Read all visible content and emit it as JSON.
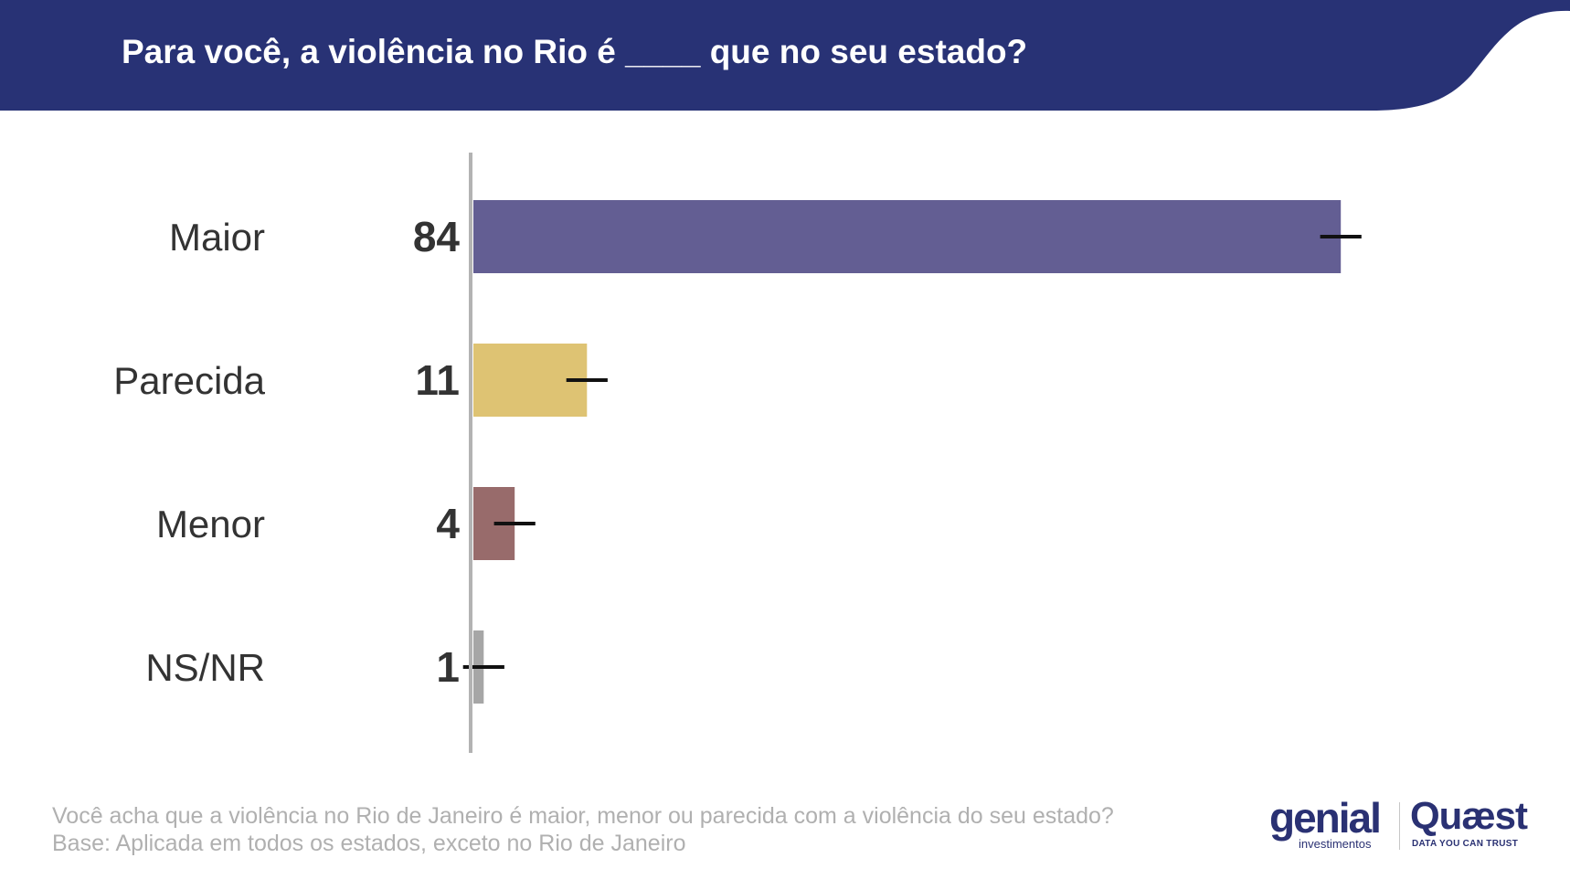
{
  "header": {
    "title": "Para você, a violência no Rio é ____ que no seu estado?",
    "background_color": "#283275"
  },
  "chart_data": {
    "type": "bar",
    "orientation": "horizontal",
    "categories": [
      "Maior",
      "Parecida",
      "Menor",
      "NS/NR"
    ],
    "values": [
      84,
      11,
      4,
      1
    ],
    "data_labels": [
      "84",
      "11",
      "4",
      "1"
    ],
    "colors": [
      "#635e93",
      "#dec373",
      "#986b6b",
      "#a6a6a6"
    ],
    "error_margin": 2,
    "xlim": [
      0,
      100
    ],
    "title": "Para você, a violência no Rio é ____ que no seu estado?",
    "xlabel": "",
    "ylabel": "",
    "grid": false,
    "legend": "none"
  },
  "footer": {
    "question": "Você acha que a violência no Rio de Janeiro é maior, menor ou parecida com a violência do seu estado?",
    "base": "Base:  Aplicada em todos os estados, exceto no Rio de Janeiro"
  },
  "logos": {
    "genial": "genial",
    "genial_sub": "investimentos",
    "quaest": "Quæst",
    "quaest_sub": "DATA YOU CAN TRUST"
  }
}
